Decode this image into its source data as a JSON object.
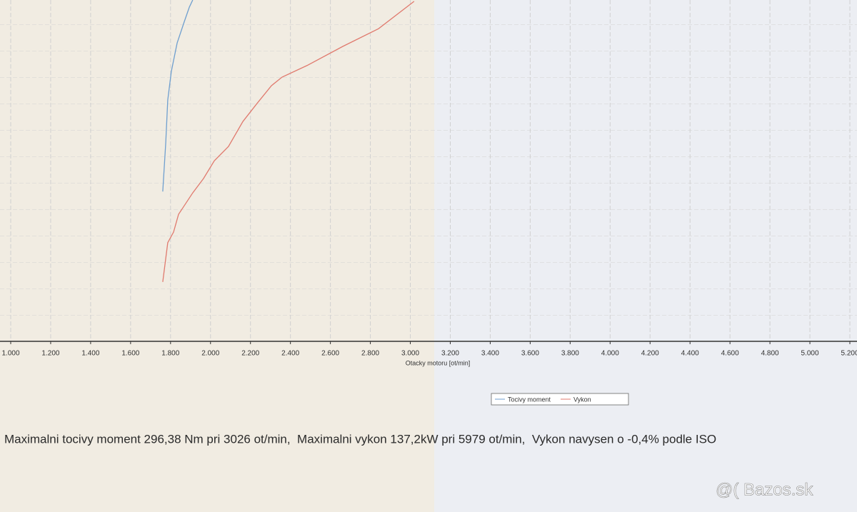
{
  "chart_data": {
    "type": "line",
    "x_label": "Otacky motoru [ot/min]",
    "xlim": [
      1000,
      5200
    ],
    "xticks": [
      {
        "value": 1000,
        "label": "1.000"
      },
      {
        "value": 1200,
        "label": "1.200"
      },
      {
        "value": 1400,
        "label": "1.400"
      },
      {
        "value": 1600,
        "label": "1.600"
      },
      {
        "value": 1800,
        "label": "1.800"
      },
      {
        "value": 2000,
        "label": "2.000"
      },
      {
        "value": 2200,
        "label": "2.200"
      },
      {
        "value": 2400,
        "label": "2.400"
      },
      {
        "value": 2600,
        "label": "2.600"
      },
      {
        "value": 2800,
        "label": "2.800"
      },
      {
        "value": 3000,
        "label": "3.000"
      },
      {
        "value": 3200,
        "label": "3.200"
      },
      {
        "value": 3400,
        "label": "3.400"
      },
      {
        "value": 3600,
        "label": "3.600"
      },
      {
        "value": 3800,
        "label": "3.800"
      },
      {
        "value": 4000,
        "label": "4.000"
      },
      {
        "value": 4200,
        "label": "4.200"
      },
      {
        "value": 4400,
        "label": "4.400"
      },
      {
        "value": 4600,
        "label": "4.600"
      },
      {
        "value": 4800,
        "label": "4.800"
      },
      {
        "value": 5000,
        "label": "5.000"
      },
      {
        "value": 5200,
        "label": "5.200"
      }
    ],
    "ylim": [
      0,
      100
    ],
    "grid": true,
    "series": [
      {
        "name": "Tocivy moment",
        "color": "#6f9fcf",
        "x": [
          1761,
          1776,
          1786,
          1804,
          1833,
          1869,
          1894,
          1911
        ],
        "values": [
          43.9,
          58.2,
          70.7,
          79.1,
          87.4,
          93.7,
          97.9,
          100
        ]
      },
      {
        "name": "Vykon",
        "color": "#e07a6e",
        "x": [
          1761,
          1786,
          1815,
          1840,
          1911,
          1965,
          2019,
          2090,
          2162,
          2233,
          2305,
          2358,
          2483,
          2662,
          2841,
          3019
        ],
        "values": [
          17.4,
          28.9,
          32.0,
          37.2,
          43.5,
          47.7,
          52.9,
          57.1,
          64.4,
          69.7,
          74.9,
          77.4,
          80.8,
          86.4,
          91.6,
          99.6
        ]
      }
    ],
    "footer_text": "Maximalni tocivy moment 296,38 Nm pri 3026 ot/min,  Maximalni vykon 137,2kW pri 5979 ot/min,  Vykon navysen o -0,4% podle ISO",
    "watermark": "@( Bazos.sk"
  }
}
